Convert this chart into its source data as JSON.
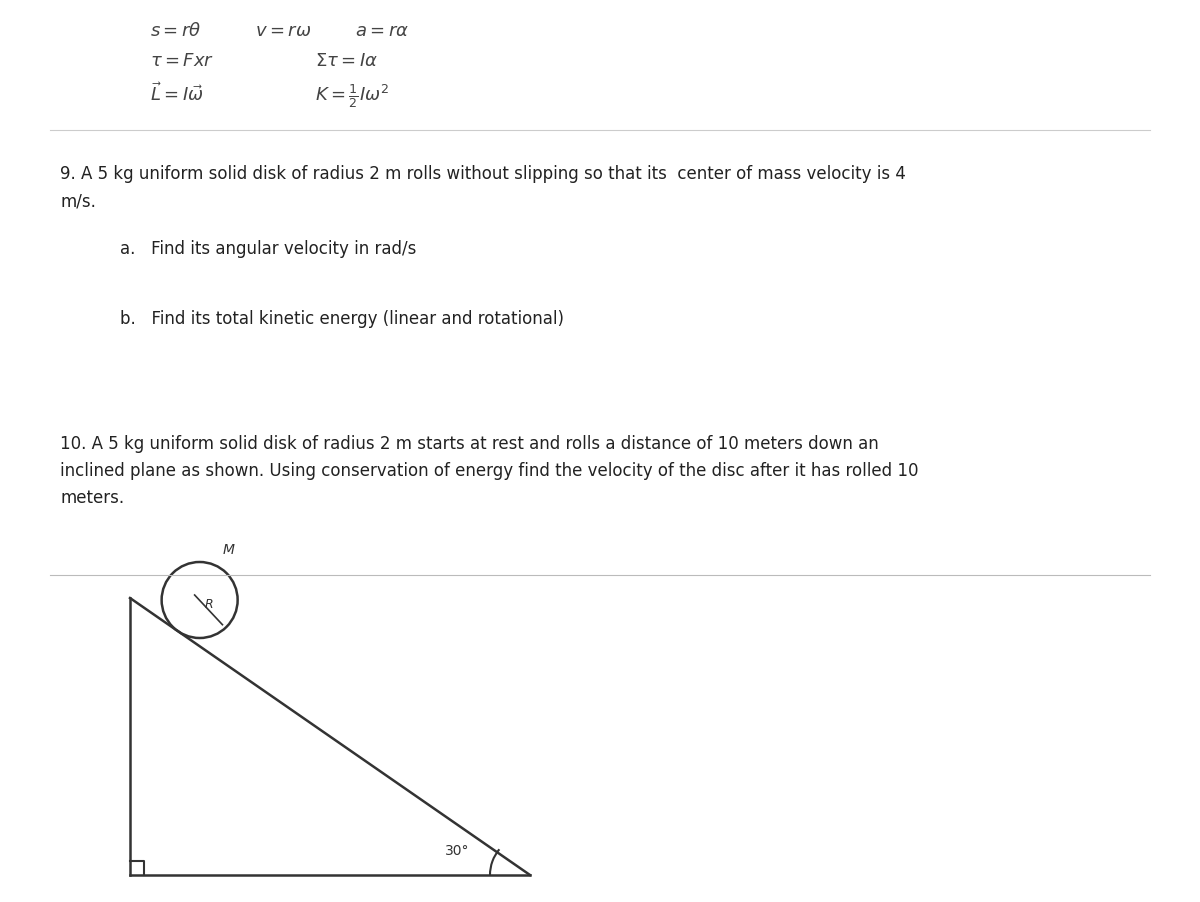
{
  "bg_color": "#ffffff",
  "text_color": "#333333",
  "fig_width": 12.0,
  "fig_height": 9.02,
  "dpi": 100,
  "angle_label": "30°",
  "disk_label_M": "M",
  "disk_label_R": "R"
}
